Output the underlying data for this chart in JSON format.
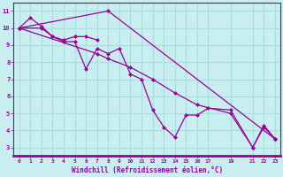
{
  "xlabel": "Windchill (Refroidissement éolien,°C)",
  "bg_color": "#c8eef0",
  "line_color": "#990099",
  "grid_color": "#aadddd",
  "xlim": [
    -0.5,
    23.5
  ],
  "ylim": [
    2.5,
    11.5
  ],
  "xticks": [
    0,
    1,
    2,
    3,
    4,
    5,
    6,
    7,
    8,
    9,
    10,
    11,
    12,
    13,
    14,
    15,
    16,
    17,
    19,
    21,
    22,
    23
  ],
  "yticks": [
    3,
    4,
    5,
    6,
    7,
    8,
    9,
    10,
    11
  ],
  "line1_top": [
    [
      0,
      10.0
    ],
    [
      1,
      10.6
    ],
    [
      2,
      10.1
    ],
    [
      3,
      9.5
    ],
    [
      4,
      9.3
    ],
    [
      5,
      9.5
    ],
    [
      6,
      9.5
    ],
    [
      7,
      9.3
    ]
  ],
  "line2_peak": [
    [
      0,
      10.0
    ],
    [
      7,
      8.8
    ],
    [
      8,
      11.0
    ],
    [
      9,
      10.5
    ],
    [
      10,
      10.3
    ]
  ],
  "line3_mid": [
    [
      0,
      10.0
    ],
    [
      2,
      10.0
    ],
    [
      3,
      9.5
    ],
    [
      4,
      9.2
    ],
    [
      5,
      9.2
    ],
    [
      6,
      7.6
    ],
    [
      7,
      8.8
    ],
    [
      8,
      8.5
    ],
    [
      9,
      8.8
    ],
    [
      10,
      7.3
    ],
    [
      11,
      7.0
    ],
    [
      12,
      5.2
    ],
    [
      13,
      4.2
    ],
    [
      14,
      3.6
    ],
    [
      15,
      4.9
    ],
    [
      16,
      4.9
    ],
    [
      17,
      5.3
    ],
    [
      19,
      5.2
    ],
    [
      21,
      3.0
    ],
    [
      22,
      4.3
    ],
    [
      23,
      3.5
    ]
  ],
  "line4_diag": [
    [
      0,
      10.0
    ],
    [
      7,
      8.5
    ],
    [
      8,
      8.2
    ],
    [
      10,
      7.7
    ],
    [
      12,
      7.0
    ],
    [
      14,
      6.2
    ],
    [
      16,
      5.5
    ],
    [
      19,
      5.0
    ],
    [
      21,
      3.0
    ],
    [
      22,
      4.2
    ],
    [
      23,
      3.5
    ]
  ],
  "line5_straight": [
    [
      0,
      10.0
    ],
    [
      8,
      11.0
    ],
    [
      23,
      3.5
    ]
  ],
  "line6_lower": [
    [
      1,
      10.6
    ],
    [
      3,
      9.5
    ],
    [
      5,
      9.2
    ],
    [
      6,
      9.2
    ],
    [
      7,
      9.2
    ],
    [
      9,
      8.8
    ],
    [
      10,
      8.5
    ],
    [
      11,
      8.0
    ],
    [
      13,
      7.0
    ],
    [
      15,
      6.0
    ],
    [
      17,
      5.3
    ],
    [
      19,
      5.0
    ],
    [
      21,
      3.0
    ],
    [
      22,
      3.5
    ],
    [
      23,
      3.5
    ]
  ]
}
